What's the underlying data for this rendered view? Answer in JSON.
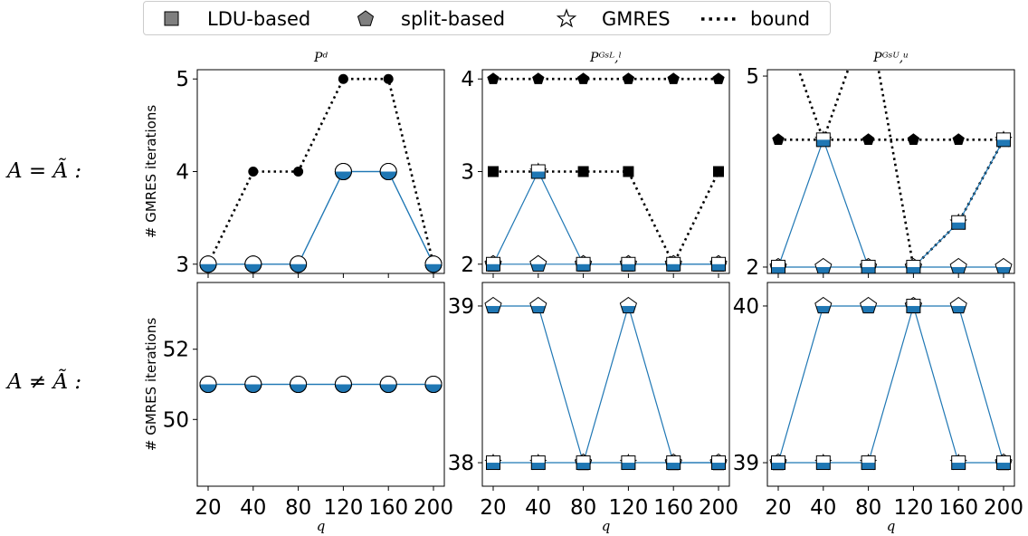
{
  "legend": [
    {
      "label": "LDU-based",
      "icon": "square-marker-icon"
    },
    {
      "label": "split-based",
      "icon": "pentagon-marker-icon"
    },
    {
      "label": "GMRES",
      "icon": "star-marker-icon"
    },
    {
      "label": "bound",
      "icon": "dotted-line-icon"
    }
  ],
  "row_labels": [
    "A = Ã  :",
    "A ≠ Ã  :"
  ],
  "colors": {
    "fill": "#1f77b4",
    "line": "#1f77b4",
    "bound": "#000000",
    "edge": "#000000"
  },
  "chart_data": [
    {
      "type": "line",
      "title": "Pᵈ",
      "ylabel": "# GMRES iterations",
      "xlabel": "",
      "x": [
        20,
        40,
        80,
        120,
        160,
        200
      ],
      "ylim": [
        2.9,
        5.1
      ],
      "yticks": [
        3,
        4,
        5
      ],
      "series": [
        {
          "name": "bound",
          "marker": "circle",
          "values": [
            3,
            4,
            4,
            5,
            5,
            3
          ]
        },
        {
          "name": "LDU-based",
          "marker": "circle",
          "values": [
            3,
            3,
            3,
            4,
            4,
            3
          ]
        },
        {
          "name": "split-based",
          "marker": "circle",
          "values": [
            3,
            3,
            3,
            4,
            4,
            3
          ]
        },
        {
          "name": "GMRES",
          "marker": "circle",
          "values": [
            3,
            3,
            3,
            4,
            4,
            3
          ]
        }
      ]
    },
    {
      "type": "line",
      "title": "Pᴳˢᴸ,ˡ",
      "ylabel": "",
      "xlabel": "",
      "x": [
        20,
        40,
        80,
        120,
        160,
        200
      ],
      "ylim": [
        1.9,
        4.1
      ],
      "yticks": [
        2,
        3,
        4
      ],
      "series": [
        {
          "name": "bound split-based",
          "marker": "pentagon",
          "values": [
            4,
            4,
            4,
            4,
            4,
            4
          ]
        },
        {
          "name": "bound LDU-based",
          "marker": "square",
          "values": [
            3,
            3,
            3,
            3,
            2,
            3
          ]
        },
        {
          "name": "LDU-based",
          "marker": "square",
          "values": [
            2,
            3,
            2,
            2,
            2,
            2
          ]
        },
        {
          "name": "split-based",
          "marker": "pentagon",
          "values": [
            2,
            2,
            2,
            2,
            2,
            2
          ]
        },
        {
          "name": "GMRES",
          "marker": "star",
          "values": [
            2,
            3,
            2,
            2,
            2,
            2
          ]
        }
      ]
    },
    {
      "type": "line",
      "title": "Pᴳˢᵁ,ᵘ",
      "ylabel": "",
      "xlabel": "",
      "x": [
        20,
        40,
        80,
        120,
        160,
        200
      ],
      "ylim": [
        1.9,
        5.1
      ],
      "yticks": [
        2,
        5
      ],
      "series": [
        {
          "name": "bound split-based",
          "marker": "pentagon",
          "values": [
            4,
            4,
            4,
            4,
            4,
            4
          ]
        },
        {
          "name": "bound LDU-based",
          "marker": "square",
          "values": [
            6,
            4,
            6,
            2,
            2.7,
            4
          ]
        },
        {
          "name": "LDU-based",
          "marker": "square",
          "values": [
            2,
            4,
            2,
            2,
            2.7,
            4
          ]
        },
        {
          "name": "split-based",
          "marker": "pentagon",
          "values": [
            2,
            2,
            2,
            2,
            2,
            2
          ]
        },
        {
          "name": "GMRES",
          "marker": "star",
          "values": [
            2,
            4,
            2,
            2,
            2.7,
            4
          ]
        }
      ]
    },
    {
      "type": "line",
      "title": "",
      "ylabel": "# GMRES iterations",
      "xlabel": "q",
      "x": [
        20,
        40,
        80,
        120,
        160,
        200
      ],
      "ylim": [
        48.1,
        53.9
      ],
      "yticks": [
        50,
        52
      ],
      "series": [
        {
          "name": "LDU-based",
          "marker": "circle",
          "values": [
            51,
            51,
            51,
            51,
            51,
            51
          ]
        },
        {
          "name": "split-based",
          "marker": "circle",
          "values": [
            51,
            51,
            51,
            51,
            51,
            51
          ]
        },
        {
          "name": "GMRES",
          "marker": "circle",
          "values": [
            51,
            51,
            51,
            51,
            51,
            51
          ]
        }
      ]
    },
    {
      "type": "line",
      "title": "",
      "ylabel": "",
      "xlabel": "q",
      "x": [
        20,
        40,
        80,
        120,
        160,
        200
      ],
      "ylim": [
        37.85,
        39.15
      ],
      "yticks": [
        38,
        39
      ],
      "series": [
        {
          "name": "LDU-based",
          "marker": "square",
          "values": [
            38,
            38,
            38,
            38,
            38,
            38
          ]
        },
        {
          "name": "split-based",
          "marker": "pentagon",
          "values": [
            39,
            39,
            38,
            39,
            38,
            38
          ]
        },
        {
          "name": "GMRES",
          "marker": "star",
          "values": [
            38,
            38,
            38,
            38,
            38,
            38
          ]
        }
      ]
    },
    {
      "type": "line",
      "title": "",
      "ylabel": "",
      "xlabel": "q",
      "x": [
        20,
        40,
        80,
        120,
        160,
        200
      ],
      "ylim": [
        38.85,
        40.15
      ],
      "yticks": [
        39,
        40
      ],
      "series": [
        {
          "name": "LDU-based",
          "marker": "square",
          "values": [
            39,
            39,
            39,
            40,
            39,
            39
          ]
        },
        {
          "name": "split-based",
          "marker": "pentagon",
          "values": [
            39,
            40,
            40,
            40,
            40,
            39
          ]
        },
        {
          "name": "GMRES",
          "marker": "star",
          "values": [
            39,
            39,
            39,
            40,
            39,
            39
          ]
        }
      ]
    }
  ]
}
